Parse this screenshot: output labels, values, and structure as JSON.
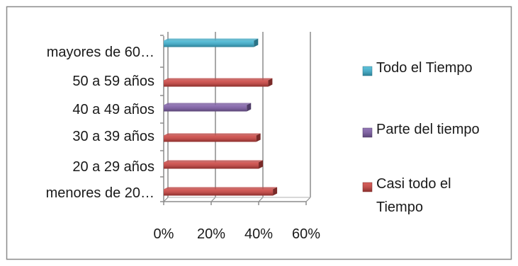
{
  "chart_data": {
    "type": "bar",
    "orientation": "horizontal",
    "title": "",
    "xlabel": "",
    "ylabel": "",
    "categories": [
      "menores de 20…",
      "20 a 29 años",
      "30 a 39 años",
      "40 a 49 años",
      "50 a 59 años",
      "mayores de 60…"
    ],
    "xlim": [
      0,
      60
    ],
    "x_ticks": [
      "0%",
      "20%",
      "40%",
      "60%"
    ],
    "x_tick_values": [
      0,
      20,
      40,
      60
    ],
    "grid": "vertical major gridlines",
    "series": [
      {
        "name": "Casi todo el Tiempo",
        "color": "#c0504d",
        "values": [
          46,
          40,
          null,
          null,
          44,
          null
        ]
      },
      {
        "name": "Casi todo el Tiempo",
        "color": "#c0504d",
        "values": [
          null,
          null,
          39,
          null,
          null,
          null
        ]
      },
      {
        "name": "Parte del tiempo",
        "color": "#8064a2",
        "values": [
          null,
          null,
          null,
          35,
          null,
          null
        ]
      },
      {
        "name": "Todo el Tiempo",
        "color": "#4bacc6",
        "values": [
          null,
          null,
          null,
          null,
          null,
          38
        ]
      }
    ],
    "legend": {
      "position": "right",
      "entries": [
        {
          "label": "Todo el Tiempo",
          "color": "#4bacc6"
        },
        {
          "label": "Parte del tiempo",
          "color": "#8064a2"
        },
        {
          "label": "Casi todo el",
          "label2": "Tiempo",
          "color": "#c0504d"
        }
      ]
    }
  }
}
